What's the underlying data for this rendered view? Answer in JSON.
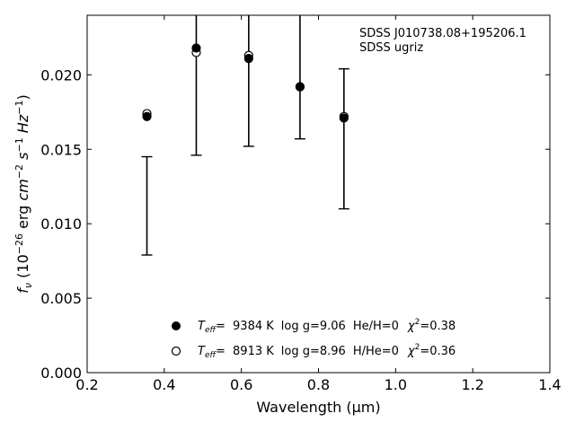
{
  "chart_data": {
    "type": "scatter",
    "xlabel": "Wavelength (μm)",
    "ylabel": "f_ν (10^-26 erg cm^-2 s^-1 Hz^-1)",
    "xlim": [
      0.2,
      1.4
    ],
    "ylim": [
      0.0,
      0.024
    ],
    "xticks": [
      "0.2",
      "0.4",
      "0.6",
      "0.8",
      "1.0",
      "1.2",
      "1.4"
    ],
    "yticks": [
      "0.000",
      "0.005",
      "0.010",
      "0.015",
      "0.020"
    ],
    "grid": false,
    "annotation": [
      "SDSS J010738.08+195206.1",
      "SDSS ugriz"
    ],
    "observed": {
      "x": [
        0.355,
        0.483,
        0.619,
        0.752,
        0.866
      ],
      "y": [
        0.0112,
        0.0261,
        0.0264,
        0.0253,
        0.0157
      ],
      "yerr": [
        0.0033,
        0.0115,
        0.0112,
        0.0096,
        0.0047
      ]
    },
    "series": [
      {
        "marker": "filled-circle",
        "x": [
          0.355,
          0.483,
          0.619,
          0.752,
          0.866
        ],
        "y": [
          0.0172,
          0.0218,
          0.0211,
          0.0192,
          0.0171
        ]
      },
      {
        "marker": "open-circle",
        "x": [
          0.355,
          0.483,
          0.619,
          0.752,
          0.866
        ],
        "y": [
          0.0174,
          0.0215,
          0.0213,
          0.0192,
          0.0172
        ]
      }
    ],
    "legend": {
      "placement": "lower-center",
      "entries": [
        {
          "teff_label": "T",
          "teff_sub": "eff",
          "eq": "= ",
          "teff": "9384 K",
          "logg": "log g=9.06",
          "comp": "He/H=0",
          "chi_label": "χ",
          "chi_sup": "2",
          "chi": "=0.38",
          "marker": "filled-circle"
        },
        {
          "teff_label": "T",
          "teff_sub": "eff",
          "eq": "= ",
          "teff": "8913 K",
          "logg": "log g=8.96",
          "comp": "H/He=0",
          "chi_label": "χ",
          "chi_sup": "2",
          "chi": "=0.36",
          "marker": "open-circle"
        }
      ]
    }
  }
}
